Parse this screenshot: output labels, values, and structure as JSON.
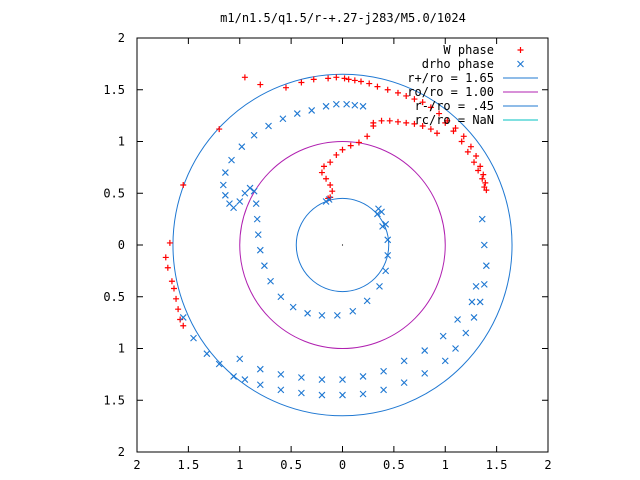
{
  "chart_data": {
    "type": "scatter",
    "title": "m1/n1.5/q1.5/r-+.27-j283/M5.0/1024",
    "xlabel": "",
    "ylabel": "",
    "xlim": [
      -2,
      2
    ],
    "ylim": [
      -2,
      2
    ],
    "grid": false,
    "legend_position": "top-right",
    "x_ticks": [
      {
        "value": -2,
        "label": "2"
      },
      {
        "value": -1.5,
        "label": "1.5"
      },
      {
        "value": -1,
        "label": "1"
      },
      {
        "value": -0.5,
        "label": "0.5"
      },
      {
        "value": 0,
        "label": "0"
      },
      {
        "value": 0.5,
        "label": "0.5"
      },
      {
        "value": 1,
        "label": "1"
      },
      {
        "value": 1.5,
        "label": "1.5"
      },
      {
        "value": 2,
        "label": "2"
      }
    ],
    "y_ticks": [
      {
        "value": 2,
        "label": "2"
      },
      {
        "value": 1.5,
        "label": "1.5"
      },
      {
        "value": 1,
        "label": "1"
      },
      {
        "value": 0.5,
        "label": "0.5"
      },
      {
        "value": 0,
        "label": "0"
      },
      {
        "value": -0.5,
        "label": "0.5"
      },
      {
        "value": -1,
        "label": "1"
      },
      {
        "value": -1.5,
        "label": "1.5"
      },
      {
        "value": -2,
        "label": "2"
      }
    ],
    "series": [
      {
        "name": "W phase",
        "marker": "plus",
        "color": "#ff0000",
        "points": [
          [
            -0.14,
            1.61
          ],
          [
            -0.06,
            1.62
          ],
          [
            0.02,
            1.61
          ],
          [
            0.06,
            1.6
          ],
          [
            0.12,
            1.59
          ],
          [
            0.18,
            1.58
          ],
          [
            0.26,
            1.56
          ],
          [
            0.34,
            1.53
          ],
          [
            0.44,
            1.5
          ],
          [
            0.54,
            1.47
          ],
          [
            0.62,
            1.44
          ],
          [
            0.7,
            1.41
          ],
          [
            0.78,
            1.38
          ],
          [
            0.86,
            1.33
          ],
          [
            0.94,
            1.27
          ],
          [
            1.02,
            1.2
          ],
          [
            1.1,
            1.13
          ],
          [
            1.18,
            1.05
          ],
          [
            1.25,
            0.95
          ],
          [
            1.3,
            0.86
          ],
          [
            1.34,
            0.76
          ],
          [
            1.37,
            0.68
          ],
          [
            1.39,
            0.6
          ],
          [
            1.4,
            0.53
          ],
          [
            1.0,
            1.18
          ],
          [
            1.08,
            1.1
          ],
          [
            1.16,
            1.0
          ],
          [
            1.22,
            0.9
          ],
          [
            1.28,
            0.8
          ],
          [
            1.32,
            0.72
          ],
          [
            1.36,
            0.64
          ],
          [
            1.38,
            0.56
          ],
          [
            0.3,
            1.18
          ],
          [
            0.38,
            1.2
          ],
          [
            0.46,
            1.2
          ],
          [
            0.54,
            1.19
          ],
          [
            0.62,
            1.18
          ],
          [
            0.7,
            1.17
          ],
          [
            0.78,
            1.15
          ],
          [
            0.86,
            1.12
          ],
          [
            0.92,
            1.08
          ],
          [
            0.3,
            1.15
          ],
          [
            0.24,
            1.05
          ],
          [
            0.16,
            0.99
          ],
          [
            0.08,
            0.96
          ],
          [
            0.0,
            0.92
          ],
          [
            -0.06,
            0.87
          ],
          [
            -0.12,
            0.8
          ],
          [
            -0.18,
            0.76
          ],
          [
            -0.2,
            0.7
          ],
          [
            -0.16,
            0.64
          ],
          [
            -0.12,
            0.58
          ],
          [
            -0.1,
            0.52
          ],
          [
            -0.12,
            0.46
          ],
          [
            -0.14,
            0.45
          ],
          [
            -0.95,
            1.62
          ],
          [
            -0.8,
            1.55
          ],
          [
            -0.55,
            1.52
          ],
          [
            -0.4,
            1.57
          ],
          [
            -0.28,
            1.6
          ],
          [
            -1.2,
            1.12
          ],
          [
            -1.55,
            0.58
          ],
          [
            -1.68,
            0.02
          ],
          [
            -1.72,
            -0.12
          ],
          [
            -1.7,
            -0.22
          ],
          [
            -1.66,
            -0.35
          ],
          [
            -1.64,
            -0.42
          ],
          [
            -1.62,
            -0.52
          ],
          [
            -1.6,
            -0.62
          ],
          [
            -1.58,
            -0.72
          ],
          [
            -1.55,
            -0.78
          ]
        ]
      },
      {
        "name": "drho phase",
        "marker": "x",
        "color": "#1f78d2",
        "points": [
          [
            -0.16,
            1.34
          ],
          [
            -0.06,
            1.36
          ],
          [
            0.04,
            1.36
          ],
          [
            0.12,
            1.35
          ],
          [
            0.2,
            1.34
          ],
          [
            -0.3,
            1.3
          ],
          [
            -0.44,
            1.27
          ],
          [
            -0.58,
            1.22
          ],
          [
            -0.72,
            1.15
          ],
          [
            -0.86,
            1.06
          ],
          [
            -0.98,
            0.95
          ],
          [
            -1.08,
            0.82
          ],
          [
            -1.14,
            0.7
          ],
          [
            -1.16,
            0.58
          ],
          [
            -1.14,
            0.48
          ],
          [
            -1.1,
            0.4
          ],
          [
            -1.06,
            0.36
          ],
          [
            -1.0,
            0.42
          ],
          [
            -0.95,
            0.5
          ],
          [
            -0.9,
            0.55
          ],
          [
            -0.86,
            0.52
          ],
          [
            -0.84,
            0.4
          ],
          [
            -0.83,
            0.25
          ],
          [
            -0.82,
            0.1
          ],
          [
            -0.8,
            -0.05
          ],
          [
            -0.76,
            -0.2
          ],
          [
            -0.7,
            -0.35
          ],
          [
            -0.6,
            -0.5
          ],
          [
            -0.48,
            -0.6
          ],
          [
            -0.34,
            -0.66
          ],
          [
            -0.2,
            -0.68
          ],
          [
            -0.05,
            -0.68
          ],
          [
            0.1,
            -0.64
          ],
          [
            0.24,
            -0.54
          ],
          [
            0.36,
            -0.4
          ],
          [
            0.42,
            -0.25
          ],
          [
            0.44,
            -0.1
          ],
          [
            0.44,
            0.05
          ],
          [
            0.42,
            0.2
          ],
          [
            0.38,
            0.32
          ],
          [
            0.35,
            0.35
          ],
          [
            0.34,
            0.3
          ],
          [
            0.39,
            0.18
          ],
          [
            -1.55,
            -0.7
          ],
          [
            -1.45,
            -0.9
          ],
          [
            -1.32,
            -1.05
          ],
          [
            -1.2,
            -1.15
          ],
          [
            -1.06,
            -1.27
          ],
          [
            -0.95,
            -1.3
          ],
          [
            -0.8,
            -1.35
          ],
          [
            -0.6,
            -1.4
          ],
          [
            -0.4,
            -1.43
          ],
          [
            -0.2,
            -1.45
          ],
          [
            0.0,
            -1.45
          ],
          [
            0.2,
            -1.44
          ],
          [
            0.4,
            -1.4
          ],
          [
            0.6,
            -1.33
          ],
          [
            0.8,
            -1.24
          ],
          [
            1.0,
            -1.12
          ],
          [
            1.1,
            -1.0
          ],
          [
            1.2,
            -0.85
          ],
          [
            1.28,
            -0.7
          ],
          [
            1.34,
            -0.55
          ],
          [
            1.38,
            -0.38
          ],
          [
            1.4,
            -0.2
          ],
          [
            1.38,
            0.0
          ],
          [
            1.36,
            0.25
          ],
          [
            -1.0,
            -1.1
          ],
          [
            -0.8,
            -1.2
          ],
          [
            -0.6,
            -1.25
          ],
          [
            -0.4,
            -1.28
          ],
          [
            -0.2,
            -1.3
          ],
          [
            0.0,
            -1.3
          ],
          [
            0.2,
            -1.27
          ],
          [
            0.4,
            -1.22
          ],
          [
            0.6,
            -1.12
          ],
          [
            0.8,
            -1.02
          ],
          [
            0.98,
            -0.88
          ],
          [
            1.12,
            -0.72
          ],
          [
            1.26,
            -0.55
          ],
          [
            1.3,
            -0.4
          ],
          [
            -0.16,
            0.42
          ],
          [
            -0.13,
            0.44
          ]
        ]
      }
    ],
    "circles": [
      {
        "name": "r+/ro = 1.65",
        "radius": 1.65,
        "color": "#1f78d2"
      },
      {
        "name": "ro/ro = 1.00",
        "radius": 1.0,
        "color": "#b020b0"
      },
      {
        "name": "r-/ro = .45",
        "radius": 0.45,
        "color": "#1f78d2"
      },
      {
        "name": "rc/ro = NaN",
        "radius": null,
        "color": "#00c0c0"
      }
    ]
  }
}
